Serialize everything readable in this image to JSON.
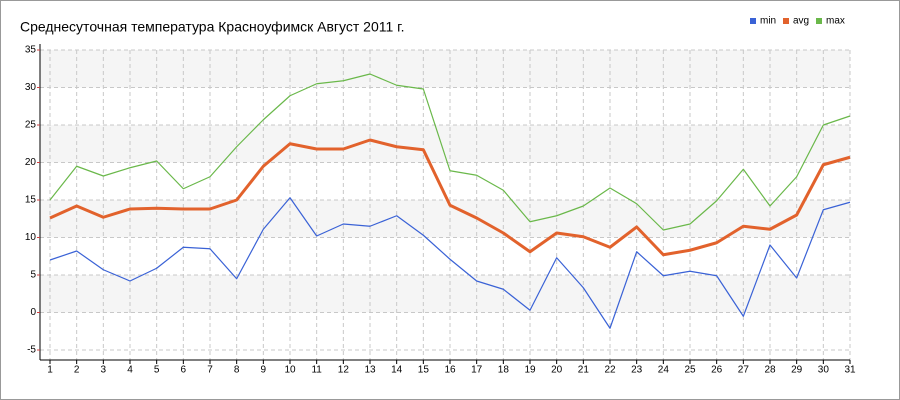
{
  "chart_data": {
    "type": "line",
    "title": "Среднесуточная температура Красноуфимск  Август 2011 г.",
    "x": [
      1,
      2,
      3,
      4,
      5,
      6,
      7,
      8,
      9,
      10,
      11,
      12,
      13,
      14,
      15,
      16,
      17,
      18,
      19,
      20,
      21,
      22,
      23,
      24,
      25,
      26,
      27,
      28,
      29,
      30,
      31
    ],
    "xlim": [
      1,
      31
    ],
    "xticks": [
      1,
      2,
      3,
      4,
      5,
      6,
      7,
      8,
      9,
      10,
      11,
      12,
      13,
      14,
      15,
      16,
      17,
      18,
      19,
      20,
      21,
      22,
      23,
      24,
      25,
      26,
      27,
      28,
      29,
      30,
      31
    ],
    "ylim": [
      -5,
      35
    ],
    "yticks": [
      -5,
      0,
      5,
      10,
      15,
      20,
      25,
      30,
      35
    ],
    "grid": true,
    "legend": "top-right",
    "series": [
      {
        "name": "min",
        "color": "#3a62d6",
        "values": [
          7.0,
          8.2,
          5.7,
          4.2,
          5.9,
          8.7,
          8.5,
          4.5,
          11.1,
          15.3,
          10.2,
          11.8,
          11.5,
          12.9,
          10.3,
          7.1,
          4.2,
          3.1,
          0.3,
          7.3,
          3.3,
          -2.1,
          8.1,
          4.9,
          5.5,
          4.9,
          -0.5,
          9.0,
          4.6,
          13.7,
          14.7
        ]
      },
      {
        "name": "avg",
        "color": "#e2622c",
        "values": [
          12.6,
          14.2,
          12.7,
          13.8,
          13.9,
          13.8,
          13.8,
          15.0,
          19.5,
          22.5,
          21.8,
          21.8,
          23.0,
          22.1,
          21.7,
          14.3,
          12.6,
          10.6,
          8.1,
          10.6,
          10.1,
          8.7,
          11.4,
          7.7,
          8.3,
          9.3,
          11.5,
          11.1,
          13.0,
          19.7,
          20.7
        ]
      },
      {
        "name": "max",
        "color": "#6ab84a",
        "values": [
          15.0,
          19.5,
          18.2,
          19.3,
          20.2,
          16.5,
          18.1,
          22.1,
          25.7,
          28.9,
          30.5,
          30.9,
          31.8,
          30.3,
          29.8,
          18.9,
          18.3,
          16.3,
          12.1,
          12.9,
          14.2,
          16.6,
          14.5,
          11.0,
          11.8,
          14.9,
          19.1,
          14.2,
          18.1,
          25.0,
          26.2
        ]
      }
    ]
  }
}
